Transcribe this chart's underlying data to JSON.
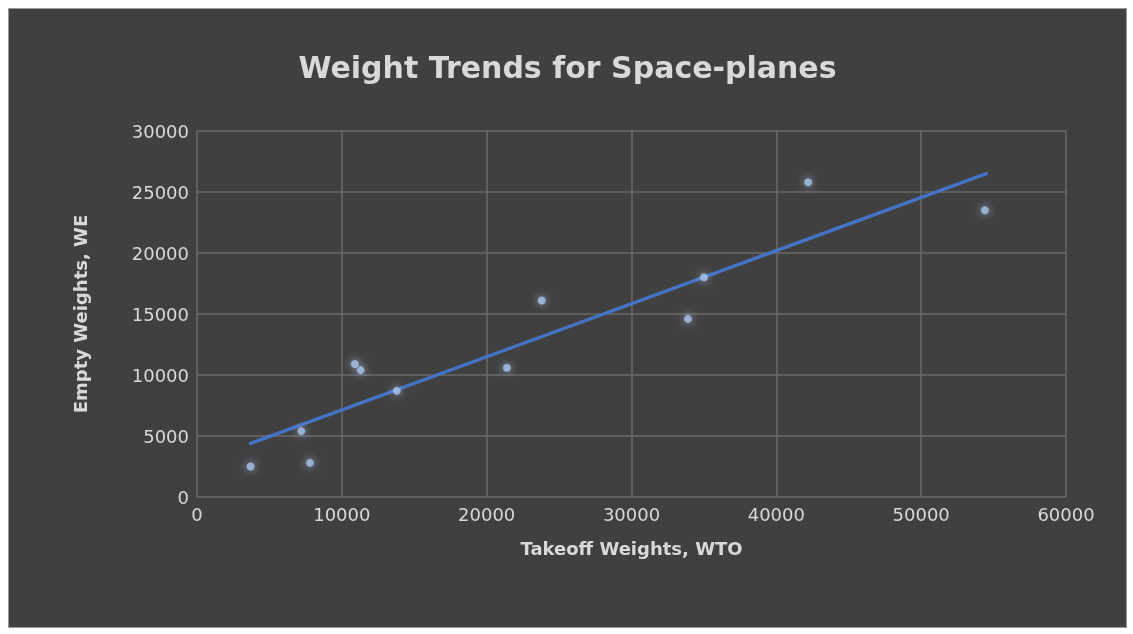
{
  "chart_data": {
    "type": "scatter",
    "title": "Weight Trends for Space-planes",
    "xlabel": "Takeoff Weights, WTO",
    "ylabel": "Empty Weights, WE",
    "x": [
      3700,
      7200,
      7800,
      10900,
      11300,
      13800,
      21400,
      23800,
      33900,
      35000,
      42200,
      54400
    ],
    "series": [
      {
        "color": "#a9c4eb",
        "marker": "circle",
        "values": [
          2500,
          5400,
          2800,
          10900,
          10400,
          8700,
          10600,
          16100,
          14600,
          18000,
          25800,
          23500
        ]
      },
      {
        "type": "line",
        "color": "#4472c4",
        "marker": "none",
        "line_style": "solid",
        "x": [
          3700,
          54500
        ],
        "values": [
          4400,
          26500
        ]
      }
    ],
    "xlim": [
      0,
      60000
    ],
    "xticks": [
      0,
      10000,
      20000,
      30000,
      40000,
      50000,
      60000
    ],
    "ylim": [
      0,
      30000
    ],
    "yticks": [
      0,
      5000,
      10000,
      15000,
      20000,
      25000,
      30000
    ],
    "grid": true
  }
}
